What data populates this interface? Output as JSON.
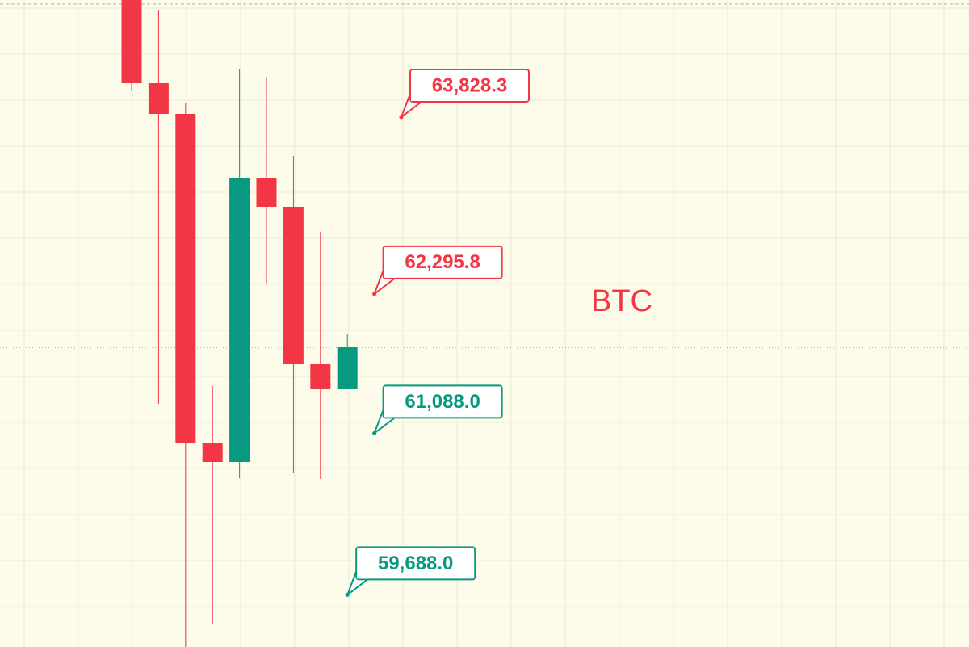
{
  "chart_data": {
    "type": "candlestick",
    "symbol": "BTC",
    "ylim": [
      59236,
      64843
    ],
    "up_color": "#089981",
    "down_color": "#f23645",
    "candles": [
      {
        "open": 64913,
        "high": 64913,
        "low": 64052,
        "close": 64122
      },
      {
        "open": 64122,
        "high": 64759,
        "low": 61343,
        "close": 63856
      },
      {
        "open": 63856,
        "high": 63954,
        "low": 59236,
        "close": 61007
      },
      {
        "open": 61007,
        "high": 61497,
        "low": 59439,
        "close": 60839
      },
      {
        "open": 60839,
        "high": 64248,
        "low": 60699,
        "close": 63303
      },
      {
        "open": 63303,
        "high": 64178,
        "low": 62379,
        "close": 63051
      },
      {
        "open": 63051,
        "high": 63492,
        "low": 60748,
        "close": 61686
      },
      {
        "open": 61686,
        "high": 62834,
        "low": 60692,
        "close": 61476
      },
      {
        "open": 61476,
        "high": 61952,
        "low": 61476,
        "close": 61833
      }
    ],
    "annotations": [
      {
        "value": 63828.3,
        "label": "63,828.3",
        "color": "#f23645"
      },
      {
        "value": 62295.8,
        "label": "62,295.8",
        "color": "#f23645"
      },
      {
        "value": 61088.0,
        "label": "61,088.0",
        "color": "#089981"
      },
      {
        "value": 59688.0,
        "label": "59,688.0",
        "color": "#089981"
      }
    ]
  }
}
